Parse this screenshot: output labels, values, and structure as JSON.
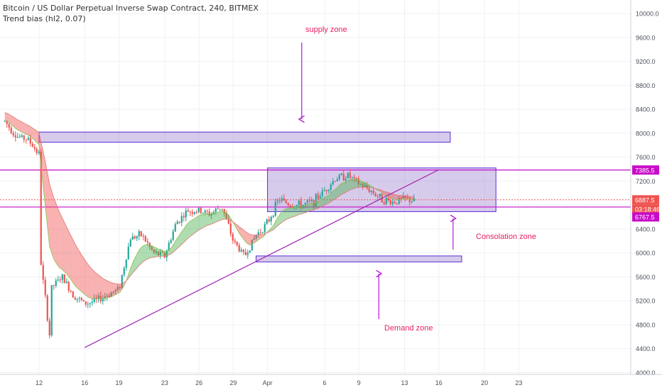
{
  "legend": {
    "symbol": "Bitcoin / US Dollar Perpetual Inverse Swap Contract, 240, BITMEX",
    "indicator": "Trend bias (hl2, 0.07)"
  },
  "colors": {
    "up": "#26a69a",
    "down": "#ef5350",
    "zone_fill": "rgba(149,117,205,0.38)",
    "zone_stroke": "#5b2dd6",
    "magenta": "#c90ac9",
    "annotation_text": "#e91e63",
    "arrow": "#b517d9",
    "price_line": "#ef5350"
  },
  "annotations": {
    "supply": "supply zone",
    "consolidation": "Consolation zone",
    "demand": "Demand zone"
  },
  "chart_data": {
    "type": "candlestick",
    "ylim": [
      3950,
      10150
    ],
    "y_ticks": [
      "10000.0",
      "9600.0",
      "9200.0",
      "8800.0",
      "8400.0",
      "8000.0",
      "7600.0",
      "7200.0",
      "6800.0",
      "6400.0",
      "6000.0",
      "5600.0",
      "5200.0",
      "4800.0",
      "4400.0",
      "4000.0"
    ],
    "x_ticks": [
      "12",
      "16",
      "19",
      "23",
      "26",
      "29",
      "Apr",
      "6",
      "9",
      "13",
      "16",
      "20",
      "23"
    ],
    "price_labels": {
      "upper": "7385.5",
      "last": "6887.5",
      "countdown": "03:18:46",
      "lower": "6767.5"
    },
    "zones": [
      {
        "name": "supply-zone",
        "from": "Mar 12",
        "to": "Apr 17",
        "low": 7850,
        "high": 8020
      },
      {
        "name": "consolidation-zone",
        "from": "Apr 1",
        "to": "Apr 21",
        "low": 6690,
        "high": 7420
      },
      {
        "name": "demand-zone",
        "from": "Mar 31",
        "to": "Apr 18",
        "low": 5850,
        "high": 5950
      }
    ],
    "horizontal_lines": [
      7385.5,
      6767.5
    ],
    "last_price": 6887.5,
    "trendline": {
      "from": [
        "Mar 16",
        4420
      ],
      "to": [
        "Apr 16",
        7390
      ]
    },
    "path": [
      [
        "Mar 9",
        8200
      ],
      [
        "Mar 10",
        7950
      ],
      [
        "Mar 11",
        7900
      ],
      [
        "Mar 11",
        7900
      ],
      [
        "Mar 12",
        7650
      ],
      [
        "Mar 12",
        6100
      ],
      [
        "Mar 13",
        4500
      ],
      [
        "Mar 13",
        5400
      ],
      [
        "Mar 14",
        5600
      ],
      [
        "Mar 15",
        5300
      ],
      [
        "Mar 16",
        5150
      ],
      [
        "Mar 17",
        5200
      ],
      [
        "Mar 18",
        5300
      ],
      [
        "Mar 19",
        5400
      ],
      [
        "Mar 20",
        6250
      ],
      [
        "Mar 21",
        6300
      ],
      [
        "Mar 22",
        6000
      ],
      [
        "Mar 23",
        5950
      ],
      [
        "Mar 24",
        6500
      ],
      [
        "Mar 25",
        6700
      ],
      [
        "Mar 26",
        6700
      ],
      [
        "Mar 27",
        6650
      ],
      [
        "Mar 28",
        6780
      ],
      [
        "Mar 29",
        6200
      ],
      [
        "Mar 30",
        5950
      ],
      [
        "Mar 31",
        6300
      ],
      [
        "Apr 1",
        6500
      ],
      [
        "Apr 2",
        6900
      ],
      [
        "Apr 3",
        6800
      ],
      [
        "Apr 4",
        6800
      ],
      [
        "Apr 5",
        6850
      ],
      [
        "Apr 6",
        7050
      ],
      [
        "Apr 7",
        7250
      ],
      [
        "Apr 8",
        7300
      ],
      [
        "Apr 9",
        7150
      ],
      [
        "Apr 10",
        7050
      ],
      [
        "Apr 11",
        6900
      ],
      [
        "Apr 12",
        6850
      ],
      [
        "Apr 13",
        6900
      ],
      [
        "Apr 14",
        6860
      ]
    ]
  }
}
